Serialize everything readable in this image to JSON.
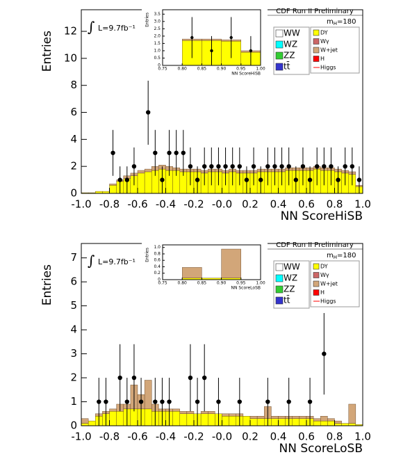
{
  "chart_data": [
    {
      "type": "histogram",
      "title": "CDF Run II Preliminary",
      "annotation_symbol": "∫",
      "annotation": "L=9.7fb⁻¹",
      "mass_label": [
        "m",
        "H",
        "=180"
      ],
      "xlabel": "NN ScoreHiSB",
      "ylabel": "Entries",
      "xlim": [
        -1,
        1
      ],
      "ylim": [
        0,
        13.6
      ],
      "xticks": [
        {
          "value": -1,
          "label": "-1.0"
        },
        -0.8,
        -0.6,
        -0.4,
        -0.2,
        {
          "value": 0,
          "label": "-0.0"
        },
        0.2,
        0.4,
        0.6,
        0.8,
        {
          "value": 1,
          "label": "1.0"
        }
      ],
      "yticks": [
        0,
        2,
        4,
        6,
        8,
        10,
        12
      ],
      "bins": [
        -1,
        -0.95,
        -0.9,
        -0.85,
        -0.8,
        -0.75,
        -0.7,
        -0.65,
        -0.6,
        -0.55,
        -0.5,
        -0.45,
        -0.4,
        -0.35,
        -0.3,
        -0.25,
        -0.2,
        -0.15,
        -0.1,
        -0.05,
        0,
        0.05,
        0.1,
        0.15,
        0.2,
        0.25,
        0.3,
        0.35,
        0.4,
        0.45,
        0.5,
        0.55,
        0.6,
        0.65,
        0.7,
        0.75,
        0.8,
        0.85,
        0.9,
        0.95,
        1
      ],
      "series": [
        {
          "name": "WW",
          "color": "#ffffff"
        },
        {
          "name": "WZ",
          "color": "#00ffff"
        },
        {
          "name": "ZZ",
          "color": "#33cc33"
        },
        {
          "name": "tt̄",
          "color": "#3333cc"
        },
        {
          "name": "DY",
          "color": "#ffff00",
          "values": [
            0.05,
            0.05,
            0.15,
            0.15,
            0.6,
            0.9,
            1.1,
            1.3,
            1.5,
            1.6,
            1.7,
            1.8,
            1.7,
            1.7,
            1.6,
            1.6,
            1.6,
            1.5,
            1.6,
            1.6,
            1.5,
            1.6,
            1.5,
            1.5,
            1.5,
            1.6,
            1.6,
            1.6,
            1.6,
            1.7,
            1.7,
            1.7,
            1.7,
            1.8,
            1.7,
            1.7,
            1.6,
            1.5,
            1.4,
            0.5
          ]
        },
        {
          "name": "Wγ",
          "color": "#cc6666"
        },
        {
          "name": "W+jet",
          "color": "#d2a679",
          "values": [
            0,
            0,
            0,
            0,
            0.1,
            0.1,
            0.2,
            0.2,
            0.2,
            0.2,
            0.3,
            0.3,
            0.3,
            0.2,
            0.2,
            0.2,
            0.2,
            0.2,
            0.2,
            0.2,
            0.2,
            0.2,
            0.2,
            0.2,
            0.2,
            0.2,
            0.2,
            0.2,
            0.2,
            0.2,
            0.2,
            0.2,
            0.2,
            0.2,
            0.2,
            0.2,
            0.2,
            0.2,
            0.2,
            0.1
          ]
        },
        {
          "name": "H",
          "color": "#ff0000"
        },
        {
          "name": "Higgs",
          "color": "#ff0000",
          "style": "line"
        }
      ],
      "points": {
        "values": [
          null,
          null,
          null,
          null,
          3,
          1,
          1,
          2,
          null,
          6,
          3,
          1,
          3,
          3,
          3,
          2,
          1,
          2,
          2,
          2,
          2,
          2,
          2,
          1,
          2,
          1,
          2,
          2,
          2,
          2,
          1,
          2,
          1,
          2,
          2,
          2,
          1,
          2,
          2,
          1
        ],
        "errors": [
          null,
          null,
          null,
          null,
          1.7,
          1,
          1,
          1.4,
          null,
          2.4,
          1.7,
          1,
          1.7,
          1.7,
          1.7,
          1.4,
          1,
          1.4,
          1.4,
          1.4,
          1.4,
          1.4,
          1.4,
          1,
          1.4,
          1,
          1.4,
          1.4,
          1.4,
          1.4,
          1,
          1.4,
          1,
          1.4,
          1.4,
          1.4,
          1,
          1.4,
          1.4,
          1
        ]
      }
    },
    {
      "type": "histogram",
      "xlabel": "NN ScoreHiSB",
      "ylabel": "Entries",
      "xlim": [
        0.75,
        1
      ],
      "ylim": [
        0,
        3.8
      ],
      "xticks": [
        0.75,
        {
          "value": 0.8,
          "label": "0.80"
        },
        0.85,
        {
          "value": 0.9,
          "label": "0.90"
        },
        0.95,
        {
          "value": 1,
          "label": "1.00"
        }
      ],
      "yticks": [
        0,
        0.5,
        {
          "value": 1,
          "label": "1.0"
        },
        1.5,
        {
          "value": 2,
          "label": "2.0"
        },
        2.5,
        {
          "value": 3,
          "label": "3.0"
        },
        3.5
      ],
      "bins": [
        0.8,
        0.85,
        0.9,
        0.95,
        1
      ],
      "series": [
        {
          "name": "DY",
          "color": "#ffff00",
          "values": [
            1.7,
            1.7,
            1.65,
            0.9
          ]
        },
        {
          "name": "W+jet",
          "color": "#d2a679",
          "values": [
            0.1,
            0.1,
            0.1,
            0.1
          ]
        }
      ],
      "points": {
        "values": [
          1.9,
          1,
          1.9,
          1
        ],
        "errors": [
          1.4,
          1,
          1.4,
          1
        ]
      }
    },
    {
      "type": "histogram",
      "title": "CDF Run II Preliminary",
      "annotation_symbol": "∫",
      "annotation": "L=9.7fb⁻¹",
      "mass_label": [
        "m",
        "H",
        "=180"
      ],
      "xlabel": "NN ScoreLoSB",
      "ylabel": "Entries",
      "xlim": [
        -1,
        1
      ],
      "ylim": [
        0,
        7.6
      ],
      "xticks": [
        {
          "value": -1,
          "label": "-1.0"
        },
        -0.8,
        -0.6,
        -0.4,
        -0.2,
        {
          "value": 0,
          "label": "-0.0"
        },
        0.2,
        0.4,
        0.6,
        0.8,
        {
          "value": 1,
          "label": "1.0"
        }
      ],
      "yticks": [
        0,
        1,
        2,
        3,
        4,
        5,
        6,
        7
      ],
      "bins": [
        -1,
        -0.95,
        -0.9,
        -0.85,
        -0.8,
        -0.75,
        -0.7,
        -0.65,
        -0.6,
        -0.55,
        -0.5,
        -0.45,
        -0.4,
        -0.35,
        -0.3,
        -0.25,
        -0.2,
        -0.15,
        -0.1,
        -0.05,
        0,
        0.05,
        0.1,
        0.15,
        0.2,
        0.25,
        0.3,
        0.35,
        0.4,
        0.45,
        0.5,
        0.55,
        0.6,
        0.65,
        0.7,
        0.75,
        0.8,
        0.85,
        0.9,
        0.95,
        1
      ],
      "series": [
        {
          "name": "WW",
          "color": "#ffffff"
        },
        {
          "name": "WZ",
          "color": "#00ffff"
        },
        {
          "name": "ZZ",
          "color": "#33cc33"
        },
        {
          "name": "tt̄",
          "color": "#3333cc"
        },
        {
          "name": "DY",
          "color": "#ffff00",
          "values": [
            0.1,
            0.2,
            0.4,
            0.5,
            0.6,
            0.6,
            0.7,
            0.7,
            0.7,
            0.7,
            0.6,
            0.6,
            0.6,
            0.6,
            0.5,
            0.5,
            0.5,
            0.5,
            0.5,
            0.5,
            0.4,
            0.4,
            0.4,
            0.4,
            0.3,
            0.3,
            0.3,
            0.3,
            0.3,
            0.3,
            0.3,
            0.3,
            0.3,
            0.2,
            0.2,
            0.2,
            0.1,
            0.1,
            0.1,
            0.05
          ]
        },
        {
          "name": "Wγ",
          "color": "#cc6666"
        },
        {
          "name": "W+jet",
          "color": "#d2a679",
          "values": [
            0.2,
            0,
            0.1,
            0.1,
            0.1,
            0.3,
            0.2,
            1,
            0.6,
            1.2,
            0.3,
            0.1,
            0.1,
            0.1,
            0.1,
            0.1,
            0,
            0.1,
            0.1,
            0,
            0.1,
            0.1,
            0.1,
            0,
            0.1,
            0.1,
            0.5,
            0.1,
            0.1,
            0.1,
            0.1,
            0.1,
            0.1,
            0.1,
            0.2,
            0.1,
            0.1,
            0,
            0.8,
            0
          ]
        },
        {
          "name": "H",
          "color": "#ff0000"
        },
        {
          "name": "Higgs",
          "color": "#ff0000",
          "style": "line"
        }
      ],
      "points": {
        "values": [
          null,
          null,
          1,
          1,
          null,
          2,
          1,
          2,
          1,
          null,
          1,
          1,
          1,
          null,
          null,
          2,
          1,
          2,
          null,
          1,
          null,
          null,
          1,
          null,
          null,
          null,
          1,
          null,
          null,
          1,
          null,
          null,
          1,
          null,
          3,
          null,
          null,
          null,
          null,
          null
        ],
        "errors": [
          null,
          null,
          1,
          1,
          null,
          1.4,
          1,
          1.4,
          1,
          null,
          1,
          1,
          1,
          null,
          null,
          1.4,
          1,
          1.4,
          null,
          1,
          null,
          null,
          1,
          null,
          null,
          null,
          1,
          null,
          null,
          1,
          null,
          null,
          1,
          null,
          1.7,
          null,
          null,
          null,
          null,
          null
        ]
      }
    },
    {
      "type": "histogram",
      "xlabel": "NN ScoreLoSB",
      "ylabel": "Entries",
      "xlim": [
        0.75,
        1
      ],
      "ylim": [
        0,
        1.08
      ],
      "xticks": [
        0.75,
        {
          "value": 0.8,
          "label": "0.80"
        },
        0.85,
        {
          "value": 0.9,
          "label": "0.90"
        },
        0.95,
        {
          "value": 1,
          "label": "1.00"
        }
      ],
      "yticks": [
        0,
        0.2,
        0.4,
        0.6,
        0.8,
        {
          "value": 1,
          "label": "1.0"
        }
      ],
      "bins": [
        0.8,
        0.85,
        0.9,
        0.95,
        1
      ],
      "series": [
        {
          "name": "DY",
          "color": "#ffff00",
          "values": [
            0.05,
            0.05,
            0.05,
            0
          ]
        },
        {
          "name": "W+jet",
          "color": "#d2a679",
          "values": [
            0.33,
            0,
            0.9,
            0
          ]
        }
      ]
    }
  ]
}
